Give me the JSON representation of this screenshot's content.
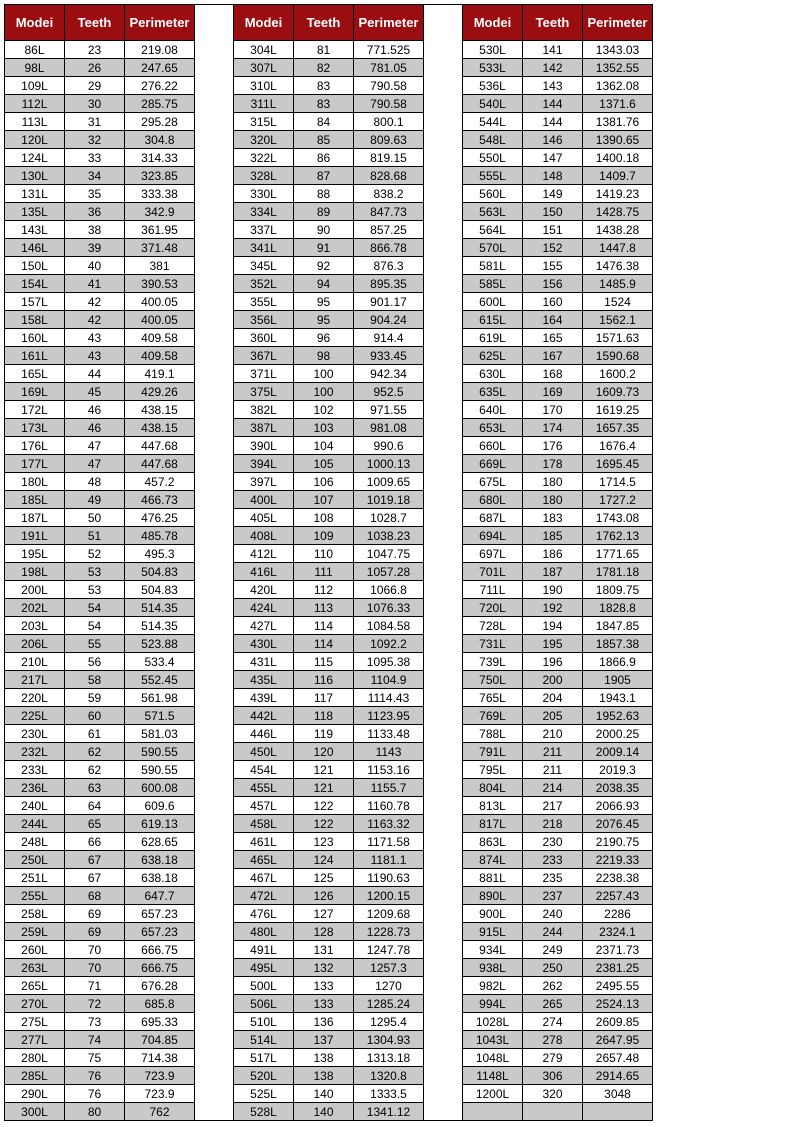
{
  "headers": {
    "model": "Modei",
    "teeth": "Teeth",
    "perimeter": "Perimeter"
  },
  "columns": [
    [
      [
        "86L",
        "23",
        "219.08",
        0
      ],
      [
        "98L",
        "26",
        "247.65",
        1
      ],
      [
        "109L",
        "29",
        "276.22",
        0
      ],
      [
        "112L",
        "30",
        "285.75",
        1
      ],
      [
        "113L",
        "31",
        "295.28",
        0
      ],
      [
        "120L",
        "32",
        "304.8",
        1
      ],
      [
        "124L",
        "33",
        "314.33",
        0
      ],
      [
        "130L",
        "34",
        "323.85",
        1
      ],
      [
        "131L",
        "35",
        "333.38",
        0
      ],
      [
        "135L",
        "36",
        "342.9",
        1
      ],
      [
        "143L",
        "38",
        "361.95",
        0
      ],
      [
        "146L",
        "39",
        "371.48",
        1
      ],
      [
        "150L",
        "40",
        "381",
        0
      ],
      [
        "154L",
        "41",
        "390.53",
        1
      ],
      [
        "157L",
        "42",
        "400.05",
        0
      ],
      [
        "158L",
        "42",
        "400.05",
        1
      ],
      [
        "160L",
        "43",
        "409.58",
        0
      ],
      [
        "161L",
        "43",
        "409.58",
        1
      ],
      [
        "165L",
        "44",
        "419.1",
        0
      ],
      [
        "169L",
        "45",
        "429.26",
        1
      ],
      [
        "172L",
        "46",
        "438.15",
        0
      ],
      [
        "173L",
        "46",
        "438.15",
        1
      ],
      [
        "176L",
        "47",
        "447.68",
        0
      ],
      [
        "177L",
        "47",
        "447.68",
        1
      ],
      [
        "180L",
        "48",
        "457.2",
        0
      ],
      [
        "185L",
        "49",
        "466.73",
        1
      ],
      [
        "187L",
        "50",
        "476.25",
        0
      ],
      [
        "191L",
        "51",
        "485.78",
        1
      ],
      [
        "195L",
        "52",
        "495.3",
        0
      ],
      [
        "198L",
        "53",
        "504.83",
        1
      ],
      [
        "200L",
        "53",
        "504.83",
        0
      ],
      [
        "202L",
        "54",
        "514.35",
        1
      ],
      [
        "203L",
        "54",
        "514.35",
        0
      ],
      [
        "206L",
        "55",
        "523.88",
        1
      ],
      [
        "210L",
        "56",
        "533.4",
        0
      ],
      [
        "217L",
        "58",
        "552.45",
        1
      ],
      [
        "220L",
        "59",
        "561.98",
        0
      ],
      [
        "225L",
        "60",
        "571.5",
        1
      ],
      [
        "230L",
        "61",
        "581.03",
        0
      ],
      [
        "232L",
        "62",
        "590.55",
        1
      ],
      [
        "233L",
        "62",
        "590.55",
        0
      ],
      [
        "236L",
        "63",
        "600.08",
        1
      ],
      [
        "240L",
        "64",
        "609.6",
        0
      ],
      [
        "244L",
        "65",
        "619.13",
        1
      ],
      [
        "248L",
        "66",
        "628.65",
        0
      ],
      [
        "250L",
        "67",
        "638.18",
        1
      ],
      [
        "251L",
        "67",
        "638.18",
        0
      ],
      [
        "255L",
        "68",
        "647.7",
        1
      ],
      [
        "258L",
        "69",
        "657.23",
        0
      ],
      [
        "259L",
        "69",
        "657.23",
        1
      ],
      [
        "260L",
        "70",
        "666.75",
        0
      ],
      [
        "263L",
        "70",
        "666.75",
        1
      ],
      [
        "265L",
        "71",
        "676.28",
        0
      ],
      [
        "270L",
        "72",
        "685.8",
        1
      ],
      [
        "275L",
        "73",
        "695.33",
        0
      ],
      [
        "277L",
        "74",
        "704.85",
        1
      ],
      [
        "280L",
        "75",
        "714.38",
        0
      ],
      [
        "285L",
        "76",
        "723.9",
        1
      ],
      [
        "290L",
        "76",
        "723.9",
        0
      ],
      [
        "300L",
        "80",
        "762",
        1
      ]
    ],
    [
      [
        "304L",
        "81",
        "771.525",
        0
      ],
      [
        "307L",
        "82",
        "781.05",
        1
      ],
      [
        "310L",
        "83",
        "790.58",
        0
      ],
      [
        "311L",
        "83",
        "790.58",
        1
      ],
      [
        "315L",
        "84",
        "800.1",
        0
      ],
      [
        "320L",
        "85",
        "809.63",
        1
      ],
      [
        "322L",
        "86",
        "819.15",
        0
      ],
      [
        "328L",
        "87",
        "828.68",
        1
      ],
      [
        "330L",
        "88",
        "838.2",
        0
      ],
      [
        "334L",
        "89",
        "847.73",
        1
      ],
      [
        "337L",
        "90",
        "857.25",
        0
      ],
      [
        "341L",
        "91",
        "866.78",
        1
      ],
      [
        "345L",
        "92",
        "876.3",
        0
      ],
      [
        "352L",
        "94",
        "895.35",
        1
      ],
      [
        "355L",
        "95",
        "901.17",
        0
      ],
      [
        "356L",
        "95",
        "904.24",
        1
      ],
      [
        "360L",
        "96",
        "914.4",
        0
      ],
      [
        "367L",
        "98",
        "933.45",
        1
      ],
      [
        "371L",
        "100",
        "942.34",
        0
      ],
      [
        "375L",
        "100",
        "952.5",
        1
      ],
      [
        "382L",
        "102",
        "971.55",
        0
      ],
      [
        "387L",
        "103",
        "981.08",
        1
      ],
      [
        "390L",
        "104",
        "990.6",
        0
      ],
      [
        "394L",
        "105",
        "1000.13",
        1
      ],
      [
        "397L",
        "106",
        "1009.65",
        0
      ],
      [
        "400L",
        "107",
        "1019.18",
        1
      ],
      [
        "405L",
        "108",
        "1028.7",
        0
      ],
      [
        "408L",
        "109",
        "1038.23",
        1
      ],
      [
        "412L",
        "110",
        "1047.75",
        0
      ],
      [
        "416L",
        "111",
        "1057.28",
        1
      ],
      [
        "420L",
        "112",
        "1066.8",
        0
      ],
      [
        "424L",
        "113",
        "1076.33",
        1
      ],
      [
        "427L",
        "114",
        "1084.58",
        0
      ],
      [
        "430L",
        "114",
        "1092.2",
        1
      ],
      [
        "431L",
        "115",
        "1095.38",
        0
      ],
      [
        "435L",
        "116",
        "1104.9",
        1
      ],
      [
        "439L",
        "117",
        "1114.43",
        0
      ],
      [
        "442L",
        "118",
        "1123.95",
        1
      ],
      [
        "446L",
        "119",
        "1133.48",
        0
      ],
      [
        "450L",
        "120",
        "1143",
        1
      ],
      [
        "454L",
        "121",
        "1153.16",
        0
      ],
      [
        "455L",
        "121",
        "1155.7",
        1
      ],
      [
        "457L",
        "122",
        "1160.78",
        0
      ],
      [
        "458L",
        "122",
        "1163.32",
        1
      ],
      [
        "461L",
        "123",
        "1171.58",
        0
      ],
      [
        "465L",
        "124",
        "1181.1",
        1
      ],
      [
        "467L",
        "125",
        "1190.63",
        0
      ],
      [
        "472L",
        "126",
        "1200.15",
        1
      ],
      [
        "476L",
        "127",
        "1209.68",
        0
      ],
      [
        "480L",
        "128",
        "1228.73",
        1
      ],
      [
        "491L",
        "131",
        "1247.78",
        0
      ],
      [
        "495L",
        "132",
        "1257.3",
        1
      ],
      [
        "500L",
        "133",
        "1270",
        0
      ],
      [
        "506L",
        "133",
        "1285.24",
        1
      ],
      [
        "510L",
        "136",
        "1295.4",
        0
      ],
      [
        "514L",
        "137",
        "1304.93",
        1
      ],
      [
        "517L",
        "138",
        "1313.18",
        0
      ],
      [
        "520L",
        "138",
        "1320.8",
        1
      ],
      [
        "525L",
        "140",
        "1333.5",
        0
      ],
      [
        "528L",
        "140",
        "1341.12",
        1
      ]
    ],
    [
      [
        "530L",
        "141",
        "1343.03",
        0
      ],
      [
        "533L",
        "142",
        "1352.55",
        1
      ],
      [
        "536L",
        "143",
        "1362.08",
        0
      ],
      [
        "540L",
        "144",
        "1371.6",
        1
      ],
      [
        "544L",
        "144",
        "1381.76",
        0
      ],
      [
        "548L",
        "146",
        "1390.65",
        1
      ],
      [
        "550L",
        "147",
        "1400.18",
        0
      ],
      [
        "555L",
        "148",
        "1409.7",
        1
      ],
      [
        "560L",
        "149",
        "1419.23",
        0
      ],
      [
        "563L",
        "150",
        "1428.75",
        1
      ],
      [
        "564L",
        "151",
        "1438.28",
        0
      ],
      [
        "570L",
        "152",
        "1447.8",
        1
      ],
      [
        "581L",
        "155",
        "1476.38",
        0
      ],
      [
        "585L",
        "156",
        "1485.9",
        1
      ],
      [
        "600L",
        "160",
        "1524",
        0
      ],
      [
        "615L",
        "164",
        "1562.1",
        1
      ],
      [
        "619L",
        "165",
        "1571.63",
        0
      ],
      [
        "625L",
        "167",
        "1590.68",
        1
      ],
      [
        "630L",
        "168",
        "1600.2",
        0
      ],
      [
        "635L",
        "169",
        "1609.73",
        1
      ],
      [
        "640L",
        "170",
        "1619.25",
        0
      ],
      [
        "653L",
        "174",
        "1657.35",
        1
      ],
      [
        "660L",
        "176",
        "1676.4",
        0
      ],
      [
        "669L",
        "178",
        "1695.45",
        1
      ],
      [
        "675L",
        "180",
        "1714.5",
        0
      ],
      [
        "680L",
        "180",
        "1727.2",
        1
      ],
      [
        "687L",
        "183",
        "1743.08",
        0
      ],
      [
        "694L",
        "185",
        "1762.13",
        1
      ],
      [
        "697L",
        "186",
        "1771.65",
        0
      ],
      [
        "701L",
        "187",
        "1781.18",
        1
      ],
      [
        "711L",
        "190",
        "1809.75",
        0
      ],
      [
        "720L",
        "192",
        "1828.8",
        1
      ],
      [
        "728L",
        "194",
        "1847.85",
        0
      ],
      [
        "731L",
        "195",
        "1857.38",
        1
      ],
      [
        "739L",
        "196",
        "1866.9",
        0
      ],
      [
        "750L",
        "200",
        "1905",
        1
      ],
      [
        "765L",
        "204",
        "1943.1",
        0
      ],
      [
        "769L",
        "205",
        "1952.63",
        1
      ],
      [
        "788L",
        "210",
        "2000.25",
        0
      ],
      [
        "791L",
        "211",
        "2009.14",
        1
      ],
      [
        "795L",
        "211",
        "2019.3",
        0
      ],
      [
        "804L",
        "214",
        "2038.35",
        1
      ],
      [
        "813L",
        "217",
        "2066.93",
        0
      ],
      [
        "817L",
        "218",
        "2076.45",
        1
      ],
      [
        "863L",
        "230",
        "2190.75",
        0
      ],
      [
        "874L",
        "233",
        "2219.33",
        1
      ],
      [
        "881L",
        "235",
        "2238.38",
        0
      ],
      [
        "890L",
        "237",
        "2257.43",
        1
      ],
      [
        "900L",
        "240",
        "2286",
        0
      ],
      [
        "915L",
        "244",
        "2324.1",
        1
      ],
      [
        "934L",
        "249",
        "2371.73",
        0
      ],
      [
        "938L",
        "250",
        "2381.25",
        1
      ],
      [
        "982L",
        "262",
        "2495.55",
        0
      ],
      [
        "994L",
        "265",
        "2524.13",
        1
      ],
      [
        "1028L",
        "274",
        "2609.85",
        0
      ],
      [
        "1043L",
        "278",
        "2647.95",
        1
      ],
      [
        "1048L",
        "279",
        "2657.48",
        0
      ],
      [
        "1148L",
        "306",
        "2914.65",
        1
      ],
      [
        "1200L",
        "320",
        "3048",
        0
      ],
      [
        "",
        "",
        "",
        1
      ]
    ]
  ]
}
